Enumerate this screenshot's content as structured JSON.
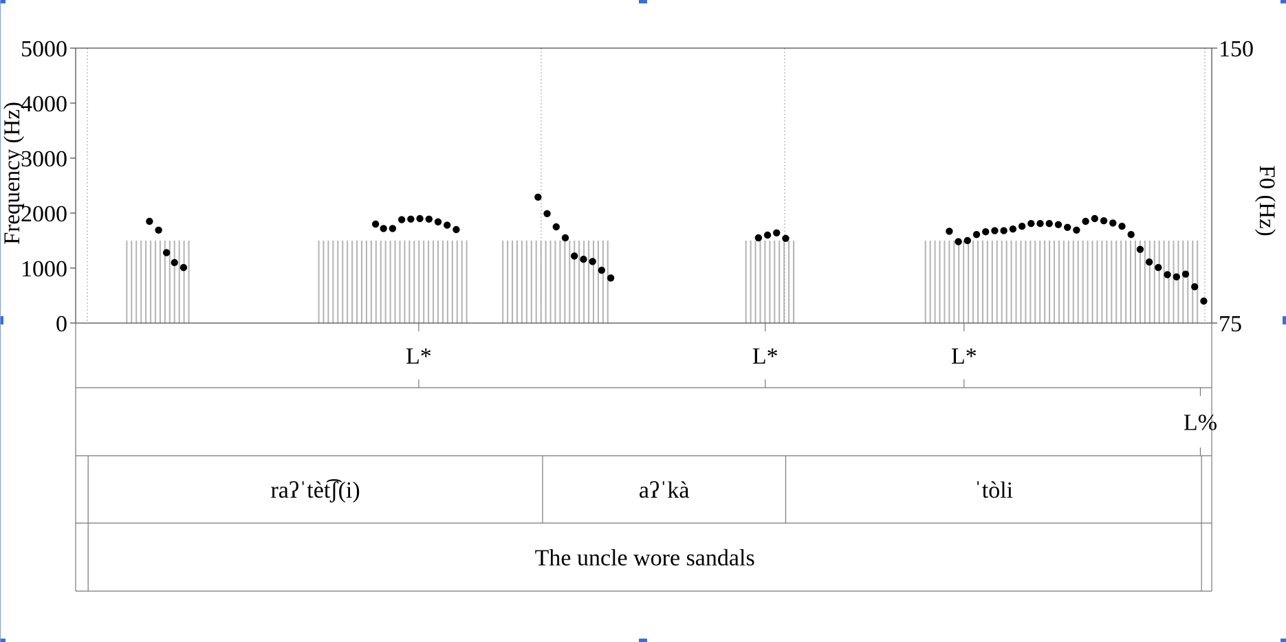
{
  "chart_data": {
    "type": "scatter",
    "title": "",
    "left_axis": {
      "label": "Frequency (Hz)",
      "range": [
        0,
        5000
      ],
      "ticks": [
        {
          "value": 0,
          "label": "0"
        },
        {
          "value": 1000,
          "label": "1000"
        },
        {
          "value": 2000,
          "label": "2000"
        },
        {
          "value": 3000,
          "label": "3000"
        },
        {
          "value": 4000,
          "label": "4000"
        },
        {
          "value": 5000,
          "label": "5000"
        }
      ]
    },
    "right_axis": {
      "label": "F0 (Hz)",
      "range": [
        75,
        150
      ],
      "ticks": [
        {
          "value": 75,
          "label": "75"
        },
        {
          "value": 150,
          "label": "150"
        }
      ]
    },
    "series": [
      {
        "points": [
          [
            0.065,
            1850
          ],
          [
            0.073,
            1690
          ],
          [
            0.08,
            1280
          ],
          [
            0.087,
            1100
          ],
          [
            0.095,
            1010
          ],
          [
            0.264,
            1800
          ],
          [
            0.271,
            1720
          ],
          [
            0.279,
            1720
          ],
          [
            0.287,
            1880
          ],
          [
            0.295,
            1890
          ],
          [
            0.303,
            1900
          ],
          [
            0.311,
            1890
          ],
          [
            0.319,
            1840
          ],
          [
            0.327,
            1780
          ],
          [
            0.335,
            1700
          ],
          [
            0.407,
            2290
          ],
          [
            0.415,
            1990
          ],
          [
            0.423,
            1750
          ],
          [
            0.431,
            1550
          ],
          [
            0.439,
            1220
          ],
          [
            0.447,
            1160
          ],
          [
            0.455,
            1120
          ],
          [
            0.463,
            960
          ],
          [
            0.471,
            820
          ],
          [
            0.601,
            1550
          ],
          [
            0.609,
            1600
          ],
          [
            0.617,
            1640
          ],
          [
            0.625,
            1540
          ],
          [
            0.769,
            1670
          ],
          [
            0.777,
            1480
          ],
          [
            0.785,
            1500
          ],
          [
            0.793,
            1610
          ],
          [
            0.801,
            1660
          ],
          [
            0.809,
            1680
          ],
          [
            0.817,
            1680
          ],
          [
            0.825,
            1710
          ],
          [
            0.833,
            1760
          ],
          [
            0.841,
            1810
          ],
          [
            0.849,
            1810
          ],
          [
            0.857,
            1810
          ],
          [
            0.865,
            1790
          ],
          [
            0.873,
            1740
          ],
          [
            0.881,
            1690
          ],
          [
            0.889,
            1850
          ],
          [
            0.897,
            1900
          ],
          [
            0.905,
            1860
          ],
          [
            0.913,
            1820
          ],
          [
            0.921,
            1760
          ],
          [
            0.929,
            1610
          ],
          [
            0.937,
            1340
          ],
          [
            0.945,
            1110
          ],
          [
            0.953,
            1010
          ],
          [
            0.961,
            880
          ],
          [
            0.969,
            840
          ],
          [
            0.977,
            890
          ],
          [
            0.985,
            660
          ],
          [
            0.993,
            400
          ]
        ]
      }
    ],
    "tiers": [
      {
        "type": "point",
        "items": [
          {
            "t": 0.302,
            "label": "L*"
          },
          {
            "t": 0.607,
            "label": "L*"
          },
          {
            "t": 0.782,
            "label": "L*"
          }
        ]
      },
      {
        "type": "point",
        "items": [
          {
            "t": 0.99,
            "label": "L%"
          }
        ]
      },
      {
        "type": "interval",
        "items": [
          {
            "start": 0.011,
            "end": 0.411,
            "label": "raʔˈtèt͡ʃ(i)"
          },
          {
            "start": 0.411,
            "end": 0.625,
            "label": "aʔˈkà"
          },
          {
            "start": 0.625,
            "end": 0.991,
            "label": "ˈtòli"
          }
        ]
      },
      {
        "type": "interval",
        "items": [
          {
            "start": 0.011,
            "end": 0.991,
            "label": "The uncle wore sandals"
          }
        ]
      }
    ],
    "grid": false,
    "legend": "none"
  }
}
